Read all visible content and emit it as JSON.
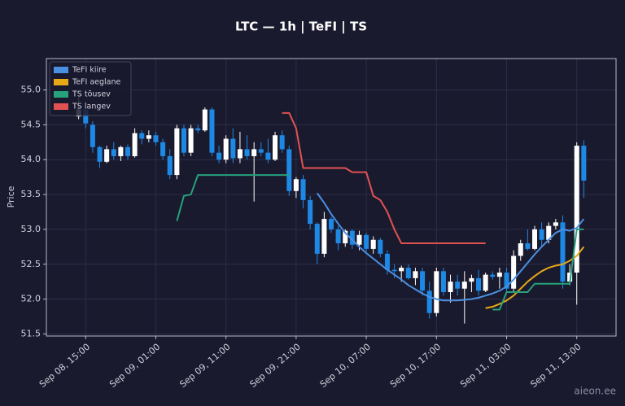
{
  "chart_data": {
    "type": "candlestick",
    "title": "LTC — 1h  |  TeFI  |  TS",
    "ylabel": "Price",
    "watermark": "aieon.ee",
    "up_color": "#ffffff",
    "down_color": "#1e88e5",
    "grid": true,
    "legend": "upper left",
    "xlim": [
      9.4,
      90.6
    ],
    "ylim": [
      51.47,
      55.45
    ],
    "xticks": [
      {
        "value": 15,
        "label": "Sep 08, 15:00"
      },
      {
        "value": 25,
        "label": "Sep 09, 01:00"
      },
      {
        "value": 35,
        "label": "Sep 09, 11:00"
      },
      {
        "value": 45,
        "label": "Sep 09, 21:00"
      },
      {
        "value": 55,
        "label": "Sep 10, 07:00"
      },
      {
        "value": 65,
        "label": "Sep 10, 17:00"
      },
      {
        "value": 75,
        "label": "Sep 11, 03:00"
      },
      {
        "value": 85,
        "label": "Sep 11, 13:00"
      }
    ],
    "yticks": [
      51.5,
      {
        "value": 52,
        "label": "52.0"
      },
      52.5,
      {
        "value": 53,
        "label": "53.0"
      },
      53.5,
      {
        "value": 54,
        "label": "54.0"
      },
      54.5,
      {
        "value": 55,
        "label": "55.0"
      }
    ],
    "x": [
      14,
      15,
      16,
      17,
      18,
      19,
      20,
      21,
      22,
      23,
      24,
      25,
      26,
      27,
      28,
      29,
      30,
      31,
      32,
      33,
      34,
      35,
      36,
      37,
      38,
      39,
      40,
      41,
      42,
      43,
      44,
      45,
      46,
      47,
      48,
      49,
      50,
      51,
      52,
      53,
      54,
      55,
      56,
      57,
      58,
      59,
      60,
      61,
      62,
      63,
      64,
      65,
      66,
      67,
      68,
      69,
      70,
      71,
      72,
      73,
      74,
      75,
      76,
      77,
      78,
      79,
      80,
      81,
      82,
      83,
      84,
      85,
      86
    ],
    "open": [
      54.62,
      54.72,
      54.5,
      54.18,
      53.97,
      54.15,
      54.05,
      54.18,
      54.05,
      54.38,
      54.3,
      54.35,
      54.25,
      54.05,
      53.78,
      54.45,
      54.1,
      54.45,
      54.42,
      54.72,
      54.1,
      54.0,
      54.3,
      54.02,
      54.15,
      54.05,
      54.15,
      54.1,
      54.0,
      54.35,
      54.15,
      53.55,
      53.72,
      53.42,
      53.08,
      52.65,
      53.15,
      53.0,
      52.8,
      52.98,
      52.78,
      52.92,
      52.72,
      52.85,
      52.65,
      52.42,
      52.4,
      52.45,
      52.3,
      52.4,
      52.12,
      51.8,
      52.4,
      52.1,
      52.25,
      52.15,
      52.25,
      52.3,
      52.12,
      52.35,
      52.32,
      52.38,
      52.15,
      52.62,
      52.8,
      52.72,
      53.0,
      52.85,
      53.05,
      53.1,
      52.25,
      52.38,
      54.2
    ],
    "high": [
      54.9,
      54.78,
      54.55,
      54.2,
      54.2,
      54.25,
      54.2,
      54.22,
      54.45,
      54.42,
      54.42,
      54.4,
      54.3,
      54.15,
      54.5,
      54.5,
      54.5,
      54.5,
      54.75,
      54.75,
      54.2,
      54.35,
      54.45,
      54.4,
      54.35,
      54.25,
      54.25,
      54.3,
      54.4,
      54.42,
      54.2,
      53.75,
      53.78,
      53.48,
      53.1,
      53.25,
      53.18,
      53.05,
      53.0,
      53.0,
      52.98,
      52.95,
      52.9,
      52.88,
      52.7,
      52.5,
      52.48,
      52.5,
      52.45,
      52.45,
      52.25,
      52.45,
      52.45,
      52.35,
      52.35,
      52.4,
      52.35,
      52.42,
      52.38,
      52.4,
      52.45,
      52.45,
      52.7,
      52.85,
      53.0,
      53.05,
      53.1,
      53.1,
      53.15,
      53.2,
      52.5,
      54.25,
      54.28
    ],
    "low": [
      54.58,
      54.45,
      54.1,
      53.88,
      53.95,
      54.0,
      53.98,
      54.0,
      54.03,
      54.22,
      54.25,
      54.2,
      54.0,
      53.72,
      53.72,
      54.05,
      54.05,
      54.38,
      54.4,
      54.05,
      53.95,
      53.95,
      53.95,
      53.95,
      54.0,
      53.4,
      54.05,
      53.95,
      53.98,
      54.1,
      53.48,
      53.45,
      53.3,
      53.0,
      52.5,
      52.6,
      52.95,
      52.7,
      52.75,
      52.72,
      52.7,
      52.68,
      52.65,
      52.6,
      52.35,
      52.3,
      52.25,
      52.28,
      52.2,
      52.05,
      51.72,
      51.75,
      52.05,
      51.95,
      52.05,
      51.65,
      52.1,
      52.05,
      52.1,
      52.28,
      52.15,
      52.1,
      52.1,
      52.55,
      52.7,
      52.7,
      52.75,
      52.8,
      53.0,
      52.15,
      52.2,
      51.92,
      53.45
    ],
    "close": [
      54.72,
      54.52,
      54.18,
      53.97,
      54.15,
      54.05,
      54.18,
      54.05,
      54.38,
      54.3,
      54.35,
      54.25,
      54.05,
      53.78,
      54.45,
      54.1,
      54.45,
      54.42,
      54.72,
      54.1,
      54.0,
      54.3,
      54.02,
      54.15,
      54.05,
      54.15,
      54.1,
      54.0,
      54.35,
      54.15,
      53.55,
      53.72,
      53.42,
      53.08,
      52.65,
      53.15,
      53.0,
      52.8,
      52.98,
      52.78,
      52.92,
      52.72,
      52.85,
      52.65,
      52.42,
      52.4,
      52.45,
      52.3,
      52.4,
      52.12,
      51.8,
      52.4,
      52.1,
      52.25,
      52.15,
      52.25,
      52.3,
      52.12,
      52.35,
      52.32,
      52.38,
      52.15,
      52.62,
      52.8,
      52.72,
      53.0,
      52.85,
      53.05,
      53.1,
      52.25,
      52.38,
      54.2,
      53.7
    ],
    "series": [
      {
        "name": "TeFI kiire",
        "color": "#4a90e2",
        "values": [
          null,
          null,
          null,
          null,
          null,
          null,
          null,
          null,
          null,
          null,
          null,
          null,
          null,
          null,
          null,
          null,
          null,
          null,
          null,
          null,
          null,
          null,
          null,
          null,
          null,
          null,
          null,
          null,
          null,
          null,
          null,
          null,
          null,
          null,
          53.52,
          53.38,
          53.22,
          53.08,
          52.95,
          52.85,
          52.75,
          52.66,
          52.58,
          52.5,
          52.42,
          52.35,
          52.28,
          52.2,
          52.14,
          52.08,
          52.03,
          52.0,
          51.98,
          51.98,
          51.98,
          51.99,
          52.0,
          52.02,
          52.05,
          52.08,
          52.12,
          52.18,
          52.28,
          52.4,
          52.52,
          52.64,
          52.75,
          52.85,
          52.95,
          53.0,
          52.98,
          53.02,
          53.15
        ]
      },
      {
        "name": "TeFI aeglane",
        "color": "#e6a817",
        "values": [
          null,
          null,
          null,
          null,
          null,
          null,
          null,
          null,
          null,
          null,
          null,
          null,
          null,
          null,
          null,
          null,
          null,
          null,
          null,
          null,
          null,
          null,
          null,
          null,
          null,
          null,
          null,
          null,
          null,
          null,
          null,
          null,
          null,
          null,
          null,
          null,
          null,
          null,
          null,
          null,
          null,
          null,
          null,
          null,
          null,
          null,
          null,
          null,
          null,
          null,
          null,
          null,
          null,
          null,
          null,
          null,
          null,
          null,
          51.87,
          51.89,
          51.93,
          51.98,
          52.05,
          52.15,
          52.25,
          52.33,
          52.4,
          52.45,
          52.48,
          52.5,
          52.55,
          52.62,
          52.75
        ]
      },
      {
        "name": "TS tõusev",
        "color": "#26a17b",
        "values": [
          null,
          null,
          null,
          null,
          null,
          null,
          null,
          null,
          null,
          null,
          null,
          null,
          null,
          null,
          53.12,
          53.48,
          53.5,
          53.78,
          53.78,
          53.78,
          53.78,
          53.78,
          53.78,
          53.78,
          53.78,
          53.78,
          53.78,
          53.78,
          53.78,
          53.78,
          53.78,
          null,
          null,
          null,
          null,
          null,
          null,
          null,
          null,
          null,
          null,
          null,
          null,
          null,
          null,
          null,
          null,
          null,
          null,
          null,
          null,
          null,
          null,
          null,
          null,
          null,
          null,
          null,
          null,
          51.85,
          51.85,
          52.1,
          52.1,
          52.1,
          52.1,
          52.22,
          52.22,
          52.22,
          52.22,
          52.22,
          52.22,
          53.0,
          53.0
        ]
      },
      {
        "name": "TS langev",
        "color": "#e05252",
        "values": [
          null,
          null,
          null,
          null,
          null,
          null,
          null,
          null,
          null,
          null,
          null,
          null,
          null,
          null,
          null,
          null,
          null,
          null,
          null,
          null,
          null,
          null,
          null,
          null,
          null,
          null,
          null,
          null,
          null,
          54.67,
          54.67,
          54.45,
          53.88,
          53.88,
          53.88,
          53.88,
          53.88,
          53.88,
          53.88,
          53.82,
          53.82,
          53.82,
          53.48,
          53.42,
          53.25,
          53.0,
          52.8,
          52.8,
          52.8,
          52.8,
          52.8,
          52.8,
          52.8,
          52.8,
          52.8,
          52.8,
          52.8,
          52.8,
          52.8,
          null,
          null,
          null,
          null,
          null,
          null,
          null,
          null,
          null,
          null,
          null,
          null,
          null,
          null
        ]
      }
    ]
  }
}
